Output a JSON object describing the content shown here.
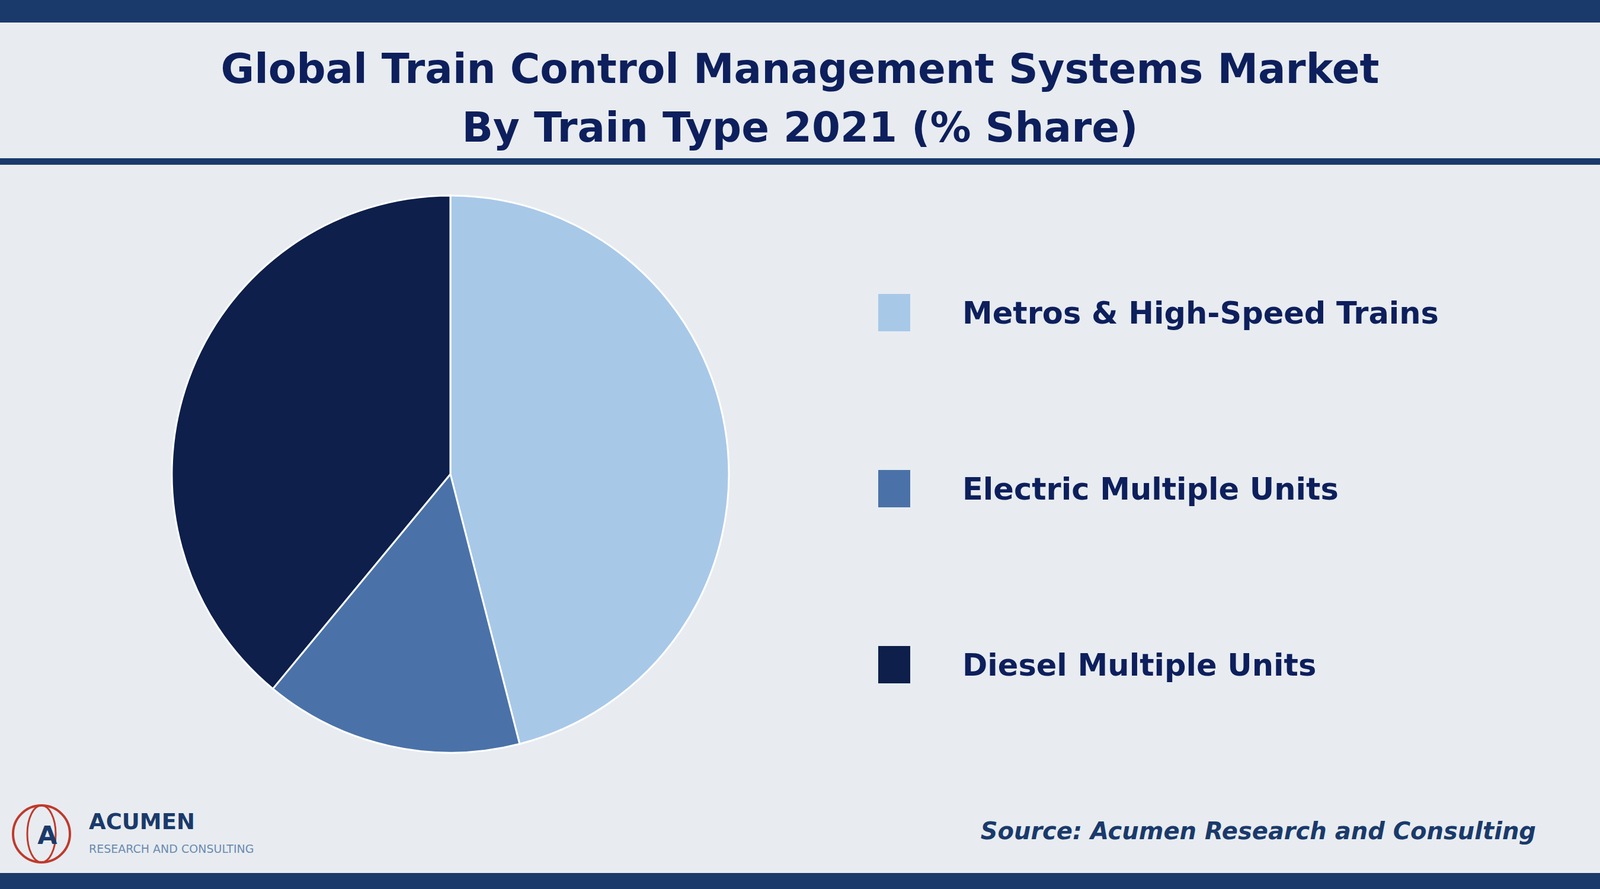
{
  "chart_data": {
    "type": "pie",
    "title": "Global Train Control Management Systems Market",
    "subtitle": "By Train Type 2021 (% Share)",
    "categories": [
      "Metros & High-Speed Trains",
      "Electric Multiple Units",
      "Diesel Multiple Units"
    ],
    "values": [
      46,
      15,
      39
    ],
    "colors": [
      "#a8c8e8",
      "#4a72a8",
      "#0d1f4a"
    ],
    "legend": "right",
    "annotations": [
      "Source: Acumen Research and Consulting",
      "ACUMEN",
      "RESEARCH AND CONSULTING",
      "A"
    ]
  }
}
